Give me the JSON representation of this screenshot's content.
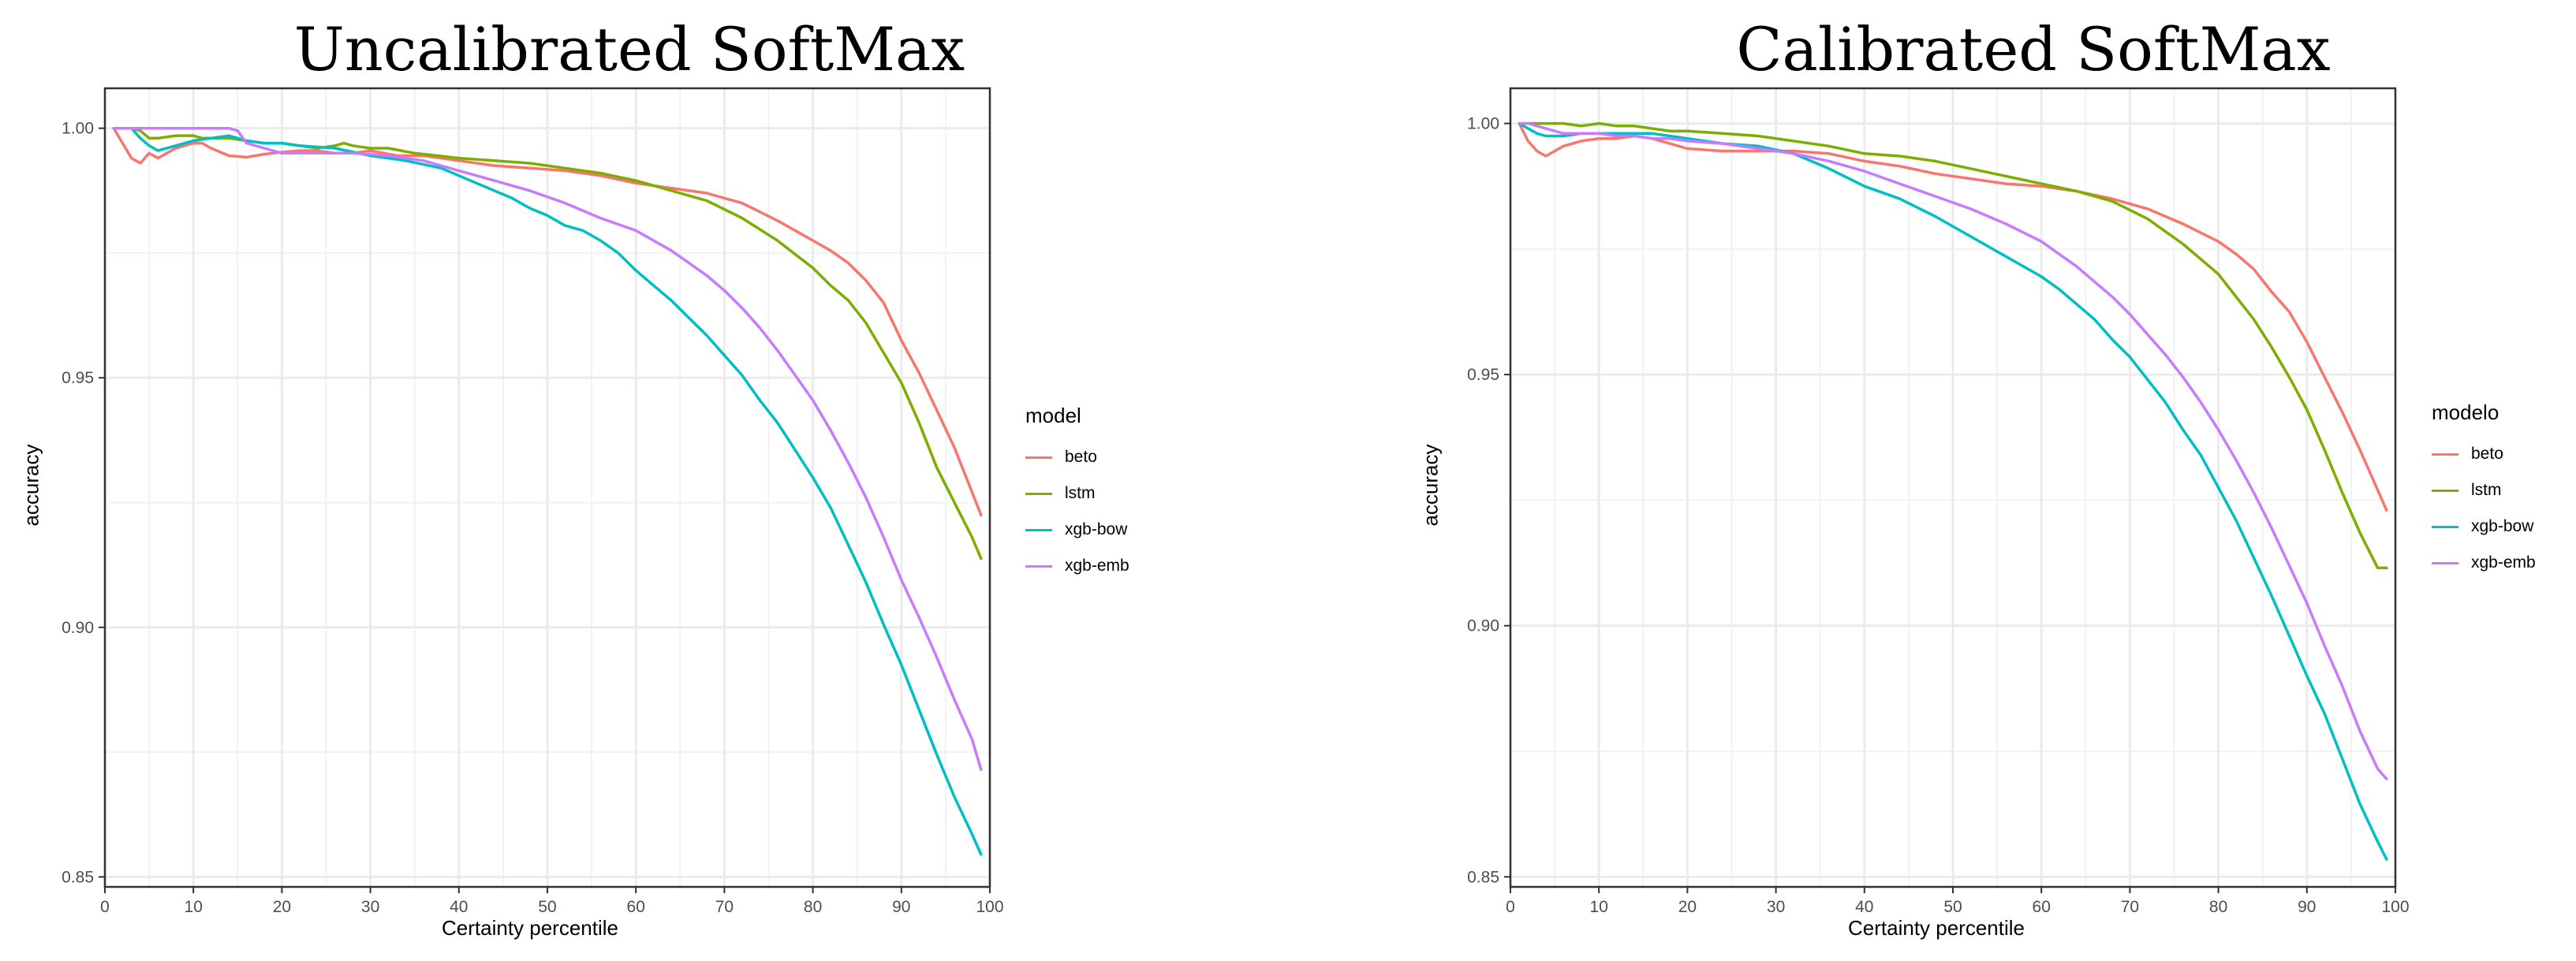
{
  "chart_data": [
    {
      "type": "line",
      "title": "Uncalibrated SoftMax",
      "xlabel": "Certainty percentile",
      "ylabel": "accuracy",
      "legend_title": "model",
      "xlim": [
        0,
        100
      ],
      "ylim": [
        0.848,
        1.008
      ],
      "xticks": [
        "0",
        "10",
        "20",
        "30",
        "40",
        "50",
        "60",
        "70",
        "80",
        "90",
        "100"
      ],
      "yticks": [
        "0.85",
        "0.90",
        "0.95",
        "1.00"
      ],
      "series": [
        {
          "name": "beto",
          "color": "#F8766D",
          "x": [
            1,
            2,
            3,
            4,
            5,
            6,
            7,
            8,
            9,
            10,
            11,
            12,
            14,
            16,
            18,
            20,
            22,
            24,
            26,
            28,
            30,
            33,
            36,
            40,
            44,
            48,
            52,
            56,
            60,
            64,
            68,
            72,
            76,
            80,
            82,
            84,
            86,
            88,
            90,
            92,
            94,
            96,
            98,
            99
          ],
          "y": [
            1.0,
            0.997,
            0.994,
            0.993,
            0.995,
            0.994,
            0.995,
            0.996,
            0.9965,
            0.997,
            0.997,
            0.996,
            0.9945,
            0.9942,
            0.9948,
            0.9952,
            0.9955,
            0.9955,
            0.995,
            0.995,
            0.9955,
            0.9945,
            0.9945,
            0.9935,
            0.9925,
            0.992,
            0.9915,
            0.9905,
            0.989,
            0.988,
            0.987,
            0.985,
            0.9815,
            0.9775,
            0.9755,
            0.973,
            0.9695,
            0.965,
            0.9575,
            0.951,
            0.9435,
            0.936,
            0.927,
            0.9225
          ]
        },
        {
          "name": "lstm",
          "color": "#7CAE00",
          "x": [
            1,
            2,
            3,
            4,
            5,
            6,
            8,
            10,
            11,
            12,
            14,
            16,
            18,
            20,
            22,
            24,
            26,
            27,
            28,
            30,
            32,
            35,
            40,
            44,
            48,
            50,
            52,
            56,
            60,
            64,
            68,
            72,
            76,
            80,
            82,
            84,
            86,
            88,
            90,
            92,
            94,
            96,
            98,
            99
          ],
          "y": [
            1.0,
            1.0,
            1.0,
            0.9995,
            0.998,
            0.998,
            0.9985,
            0.9985,
            0.998,
            0.998,
            0.998,
            0.9975,
            0.997,
            0.997,
            0.9965,
            0.996,
            0.9965,
            0.997,
            0.9965,
            0.996,
            0.996,
            0.995,
            0.994,
            0.9935,
            0.993,
            0.9925,
            0.992,
            0.991,
            0.9895,
            0.9875,
            0.9855,
            0.982,
            0.9775,
            0.972,
            0.9685,
            0.9655,
            0.961,
            0.955,
            0.949,
            0.941,
            0.932,
            0.925,
            0.918,
            0.9138
          ]
        },
        {
          "name": "xgb-bow",
          "color": "#00BFC4",
          "x": [
            1,
            2,
            3,
            4,
            5,
            6,
            8,
            10,
            12,
            14,
            16,
            18,
            20,
            22,
            26,
            30,
            34,
            38,
            42,
            46,
            48,
            50,
            52,
            54,
            56,
            58,
            60,
            62,
            64,
            66,
            68,
            70,
            72,
            74,
            76,
            78,
            80,
            82,
            84,
            86,
            88,
            90,
            92,
            94,
            96,
            98,
            99
          ],
          "y": [
            1.0,
            1.0,
            1.0,
            0.998,
            0.9965,
            0.9955,
            0.9965,
            0.9975,
            0.998,
            0.9985,
            0.9975,
            0.997,
            0.997,
            0.9965,
            0.996,
            0.9945,
            0.9935,
            0.992,
            0.989,
            0.986,
            0.984,
            0.9825,
            0.9805,
            0.9795,
            0.9775,
            0.975,
            0.9715,
            0.9685,
            0.9655,
            0.962,
            0.9585,
            0.9545,
            0.9505,
            0.9455,
            0.941,
            0.9355,
            0.93,
            0.924,
            0.9165,
            0.909,
            0.9005,
            0.8925,
            0.8835,
            0.8745,
            0.866,
            0.8585,
            0.8545
          ]
        },
        {
          "name": "xgb-emb",
          "color": "#C77CFF",
          "x": [
            1,
            2,
            4,
            6,
            8,
            10,
            12,
            14,
            15,
            16,
            18,
            20,
            24,
            28,
            32,
            36,
            40,
            44,
            48,
            52,
            56,
            60,
            62,
            64,
            66,
            68,
            70,
            72,
            74,
            76,
            78,
            80,
            82,
            84,
            86,
            88,
            90,
            92,
            94,
            96,
            98,
            99
          ],
          "y": [
            1.0,
            1.0,
            1.0,
            1.0,
            1.0,
            1.0,
            1.0,
            1.0,
            0.9995,
            0.997,
            0.996,
            0.995,
            0.995,
            0.995,
            0.9945,
            0.9935,
            0.9915,
            0.9895,
            0.9875,
            0.985,
            0.982,
            0.9795,
            0.9775,
            0.9755,
            0.973,
            0.9705,
            0.9675,
            0.964,
            0.96,
            0.9555,
            0.9505,
            0.9455,
            0.9395,
            0.933,
            0.926,
            0.918,
            0.9095,
            0.902,
            0.894,
            0.8855,
            0.8775,
            0.8715
          ]
        }
      ]
    },
    {
      "type": "line",
      "title": "Calibrated SoftMax",
      "xlabel": "Certainty percentile",
      "ylabel": "accuracy",
      "legend_title": "modelo",
      "xlim": [
        0,
        100
      ],
      "ylim": [
        0.848,
        1.007
      ],
      "xticks": [
        "0",
        "10",
        "20",
        "30",
        "40",
        "50",
        "60",
        "70",
        "80",
        "90",
        "100"
      ],
      "yticks": [
        "0.85",
        "0.90",
        "0.95",
        "1.00"
      ],
      "series": [
        {
          "name": "beto",
          "color": "#F8766D",
          "x": [
            1,
            2,
            3,
            4,
            5,
            6,
            8,
            10,
            12,
            14,
            16,
            18,
            20,
            24,
            28,
            32,
            36,
            40,
            44,
            48,
            52,
            56,
            60,
            64,
            68,
            72,
            76,
            80,
            82,
            84,
            86,
            88,
            90,
            92,
            94,
            96,
            98,
            99
          ],
          "y": [
            1.0,
            0.9965,
            0.9945,
            0.9935,
            0.9945,
            0.9955,
            0.9965,
            0.997,
            0.997,
            0.9975,
            0.997,
            0.996,
            0.995,
            0.9945,
            0.9945,
            0.9945,
            0.994,
            0.9925,
            0.9915,
            0.99,
            0.989,
            0.988,
            0.9875,
            0.9865,
            0.985,
            0.983,
            0.98,
            0.9765,
            0.974,
            0.971,
            0.9665,
            0.9625,
            0.9565,
            0.9495,
            0.9425,
            0.935,
            0.927,
            0.923
          ]
        },
        {
          "name": "lstm",
          "color": "#7CAE00",
          "x": [
            1,
            2,
            4,
            6,
            8,
            10,
            12,
            14,
            16,
            18,
            20,
            24,
            28,
            32,
            36,
            40,
            44,
            48,
            52,
            56,
            60,
            64,
            68,
            72,
            76,
            80,
            82,
            84,
            86,
            88,
            90,
            92,
            94,
            96,
            98,
            99
          ],
          "y": [
            1.0,
            1.0,
            1.0,
            1.0,
            0.9995,
            1.0,
            0.9995,
            0.9995,
            0.999,
            0.9985,
            0.9985,
            0.998,
            0.9975,
            0.9965,
            0.9955,
            0.994,
            0.9935,
            0.9925,
            0.991,
            0.9895,
            0.988,
            0.9865,
            0.9845,
            0.981,
            0.976,
            0.97,
            0.9655,
            0.961,
            0.9555,
            0.9495,
            0.943,
            0.935,
            0.9265,
            0.9185,
            0.9115,
            0.9115
          ]
        },
        {
          "name": "xgb-bow",
          "color": "#00BFC4",
          "x": [
            1,
            2,
            3,
            4,
            6,
            8,
            10,
            12,
            14,
            16,
            18,
            20,
            24,
            28,
            32,
            36,
            40,
            44,
            48,
            52,
            56,
            60,
            62,
            64,
            66,
            68,
            70,
            72,
            74,
            76,
            78,
            80,
            82,
            84,
            86,
            88,
            90,
            92,
            94,
            96,
            98,
            99
          ],
          "y": [
            1.0,
            0.999,
            0.998,
            0.9975,
            0.9975,
            0.998,
            0.998,
            0.998,
            0.998,
            0.998,
            0.9975,
            0.997,
            0.996,
            0.9955,
            0.994,
            0.991,
            0.9875,
            0.985,
            0.9815,
            0.9775,
            0.9735,
            0.9695,
            0.967,
            0.964,
            0.961,
            0.957,
            0.9535,
            0.949,
            0.9445,
            0.939,
            0.934,
            0.9275,
            0.921,
            0.9135,
            0.906,
            0.898,
            0.89,
            0.8825,
            0.8735,
            0.8645,
            0.857,
            0.8535
          ]
        },
        {
          "name": "xgb-emb",
          "color": "#C77CFF",
          "x": [
            1,
            2,
            4,
            6,
            8,
            10,
            12,
            14,
            16,
            18,
            20,
            24,
            28,
            32,
            36,
            40,
            44,
            48,
            52,
            56,
            60,
            62,
            64,
            66,
            68,
            70,
            72,
            74,
            76,
            78,
            80,
            82,
            84,
            86,
            88,
            90,
            92,
            94,
            96,
            98,
            99
          ],
          "y": [
            1.0,
            1.0,
            0.999,
            0.998,
            0.998,
            0.998,
            0.9975,
            0.9975,
            0.997,
            0.997,
            0.9965,
            0.996,
            0.995,
            0.994,
            0.9925,
            0.9905,
            0.988,
            0.9855,
            0.983,
            0.98,
            0.9765,
            0.974,
            0.9715,
            0.9685,
            0.9655,
            0.962,
            0.958,
            0.954,
            0.9495,
            0.9445,
            0.939,
            0.933,
            0.9265,
            0.9195,
            0.912,
            0.9045,
            0.896,
            0.888,
            0.879,
            0.8715,
            0.8695
          ]
        }
      ]
    }
  ]
}
